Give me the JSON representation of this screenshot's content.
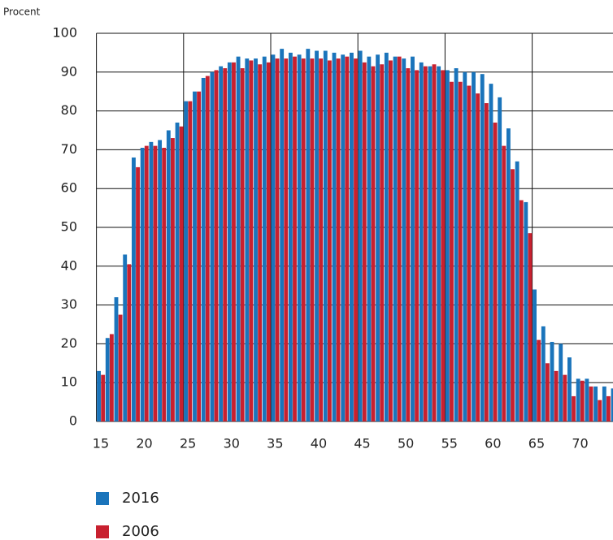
{
  "chart_data": {
    "type": "bar",
    "ylabel": "Procent",
    "categories": [
      "15",
      null,
      null,
      null,
      null,
      "20",
      null,
      null,
      null,
      null,
      "25",
      null,
      null,
      null,
      null,
      "30",
      null,
      null,
      null,
      null,
      "35",
      null,
      null,
      null,
      null,
      "40",
      null,
      null,
      null,
      null,
      "45",
      null,
      null,
      null,
      null,
      "50",
      null,
      null,
      null,
      null,
      "55",
      null,
      null,
      null,
      null,
      "60",
      null,
      null,
      null,
      null,
      "65",
      null,
      null,
      null,
      null,
      "70",
      null,
      null,
      null,
      null
    ],
    "series": [
      {
        "name": "2016",
        "color": "#1a74bb",
        "values": [
          13,
          21.5,
          32,
          43,
          68,
          70.5,
          72,
          72.5,
          75,
          77,
          82.5,
          85,
          88.5,
          90,
          91.5,
          92.5,
          94,
          93.5,
          93.5,
          94,
          94.5,
          96,
          95,
          94.5,
          96,
          95.5,
          95.5,
          95,
          94.5,
          95,
          95.5,
          94,
          94.5,
          95,
          94,
          93.5,
          94,
          92.5,
          91.5,
          91.5,
          90.5,
          91,
          90,
          90,
          89.5,
          87,
          83.5,
          75.5,
          67,
          56.5,
          34,
          24.5,
          20.5,
          20,
          16.5,
          11,
          11,
          9,
          9,
          8.5
        ]
      },
      {
        "name": "2006",
        "color": "#c8202f",
        "values": [
          12,
          22.5,
          27.5,
          40.5,
          65.5,
          71,
          71,
          70.5,
          73,
          76,
          82.5,
          85,
          89,
          90.5,
          91,
          92.5,
          91,
          93,
          92,
          92.5,
          93.5,
          93.5,
          94,
          93.5,
          93.5,
          93.5,
          93,
          93.5,
          94,
          93.5,
          92.5,
          91.5,
          92,
          93,
          94,
          91,
          90.5,
          91.5,
          92,
          90.5,
          87.5,
          87.5,
          86.5,
          84.5,
          82,
          77,
          71,
          65,
          57,
          48.5,
          21,
          15,
          13,
          12,
          6.5,
          10.5,
          9,
          5.5,
          6.5,
          7
        ]
      }
    ],
    "ylim": [
      0,
      100
    ],
    "yticks": [
      0,
      10,
      20,
      30,
      40,
      50,
      60,
      70,
      80,
      90,
      100
    ],
    "grid": true
  }
}
